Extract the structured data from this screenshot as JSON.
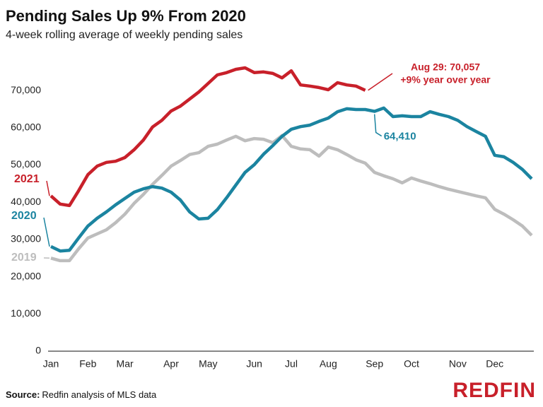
{
  "chart_data": {
    "type": "line",
    "title": "Pending Sales Up 9% From 2020",
    "subtitle": "4-week rolling average of weekly pending sales",
    "categories": [
      "Jan",
      null,
      null,
      null,
      "Feb",
      null,
      null,
      null,
      "Mar",
      null,
      null,
      null,
      null,
      "Apr",
      null,
      null,
      null,
      "May",
      null,
      null,
      null,
      null,
      "Jun",
      null,
      null,
      null,
      "Jul",
      null,
      null,
      null,
      "Aug",
      null,
      null,
      null,
      null,
      "Sep",
      null,
      null,
      null,
      "Oct",
      null,
      null,
      null,
      null,
      "Nov",
      null,
      null,
      null,
      "Dec",
      null,
      null,
      null,
      null
    ],
    "series": [
      {
        "name": "2021",
        "color": "#c8202a",
        "values": [
          41700,
          39500,
          39100,
          43100,
          47400,
          49700,
          50700,
          51000,
          52000,
          54100,
          56700,
          60200,
          62000,
          64500,
          65800,
          67700,
          69600,
          71900,
          74200,
          74800,
          75700,
          76100,
          74800,
          75000,
          74600,
          73400,
          75300,
          71500,
          71200,
          70800,
          70200,
          72100,
          71500,
          71200,
          70057,
          null,
          null,
          null,
          null,
          null,
          null,
          null,
          null,
          null,
          null,
          null,
          null,
          null,
          null,
          null,
          null,
          null,
          null
        ]
      },
      {
        "name": "2020",
        "color": "#1b84a0",
        "values": [
          28100,
          26900,
          27100,
          30400,
          33600,
          35700,
          37400,
          39300,
          41000,
          42700,
          43600,
          44200,
          43800,
          42700,
          40600,
          37400,
          35500,
          35700,
          38000,
          41200,
          44600,
          48000,
          50100,
          52900,
          55200,
          57700,
          59600,
          60300,
          60700,
          61700,
          62600,
          64300,
          65100,
          64900,
          64900,
          64410,
          65300,
          63000,
          63200,
          63000,
          63000,
          64300,
          63600,
          63000,
          62000,
          60300,
          59000,
          57700,
          52600,
          52200,
          50700,
          48800,
          46300
        ]
      },
      {
        "name": "2019",
        "color": "#bdbdbd",
        "values": [
          25000,
          24300,
          24300,
          27500,
          30400,
          31500,
          32600,
          34500,
          36800,
          39700,
          42100,
          44800,
          47200,
          49700,
          51200,
          52800,
          53300,
          55000,
          55600,
          56700,
          57700,
          56500,
          57100,
          56900,
          56000,
          57900,
          55000,
          54300,
          54100,
          52400,
          54800,
          54100,
          52800,
          51400,
          50500,
          48000,
          47100,
          46300,
          45200,
          46500,
          45700,
          45000,
          44200,
          43500,
          42900,
          42300,
          41700,
          41200,
          38100,
          36800,
          35300,
          33600,
          31100
        ]
      }
    ],
    "ylim": [
      0,
      77000
    ],
    "yticks": [
      0,
      {
        "value": 10000,
        "label": "10,000"
      },
      {
        "value": 20000,
        "label": "20,000"
      },
      {
        "value": 30000,
        "label": "30,000"
      },
      {
        "value": 40000,
        "label": "40,000"
      },
      {
        "value": 50000,
        "label": "50,000"
      },
      {
        "value": 60000,
        "label": "60,000"
      },
      {
        "value": 70000,
        "label": "70,000"
      }
    ],
    "grid": false,
    "annotations": [
      {
        "text": "Aug 29: 70,057",
        "color": "#c8202a"
      },
      {
        "text": "+9% year over year",
        "color": "#c8202a"
      },
      {
        "text": "64,410",
        "color": "#1b84a0"
      }
    ],
    "source_label": "Source:",
    "source": "Redfin analysis of MLS data",
    "logo": "REDFIN"
  }
}
